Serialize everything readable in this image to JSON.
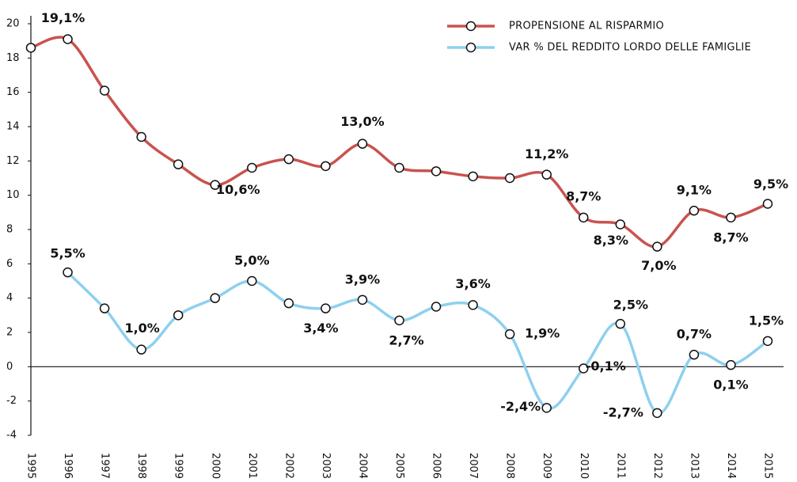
{
  "chart_data": {
    "type": "line",
    "categories": [
      "1995",
      "1996",
      "1997",
      "1998",
      "1999",
      "2000",
      "2001",
      "2002",
      "2003",
      "2004",
      "2005",
      "2006",
      "2007",
      "2008",
      "2009",
      "2010",
      "2011",
      "2012",
      "2013",
      "2014",
      "2015"
    ],
    "ylim": [
      -4,
      20
    ],
    "yticks": [
      -4,
      -2,
      0,
      2,
      4,
      6,
      8,
      10,
      12,
      14,
      16,
      18,
      20
    ],
    "legend": "top-right",
    "series": [
      {
        "name": "PROPENSIONE AL RISPARMIO",
        "color": "#c9534f",
        "values": [
          18.6,
          19.1,
          16.1,
          13.4,
          11.8,
          10.6,
          11.6,
          12.1,
          11.7,
          13.0,
          11.6,
          11.4,
          11.1,
          11.0,
          11.2,
          8.7,
          8.3,
          7.0,
          9.1,
          8.7,
          9.5
        ],
        "value_labels": [
          null,
          "19,1%",
          null,
          null,
          null,
          "10,6%",
          null,
          null,
          null,
          "13,0%",
          null,
          null,
          null,
          null,
          "11,2%",
          "8,7%",
          "8,3%",
          "7,0%",
          "9,1%",
          "8,7%",
          "9,5%"
        ]
      },
      {
        "name": "VAR % DEL REDDITO LORDO DELLE FAMIGLIE",
        "color": "#8ed0ee",
        "values": [
          null,
          5.5,
          3.4,
          1.0,
          3.0,
          4.0,
          5.0,
          3.7,
          3.4,
          3.9,
          2.7,
          3.5,
          3.6,
          1.9,
          -2.4,
          -0.1,
          2.5,
          -2.7,
          0.7,
          0.1,
          1.5
        ],
        "value_labels": [
          null,
          "5,5%",
          null,
          "1,0%",
          null,
          null,
          "5,0%",
          null,
          "3,4%",
          "3,9%",
          "2,7%",
          null,
          "3,6%",
          "1,9%",
          "-2,4%",
          "-0,1%",
          "2,5%",
          "-2,7%",
          "0,7%",
          "0,1%",
          "1,5%"
        ]
      }
    ]
  }
}
